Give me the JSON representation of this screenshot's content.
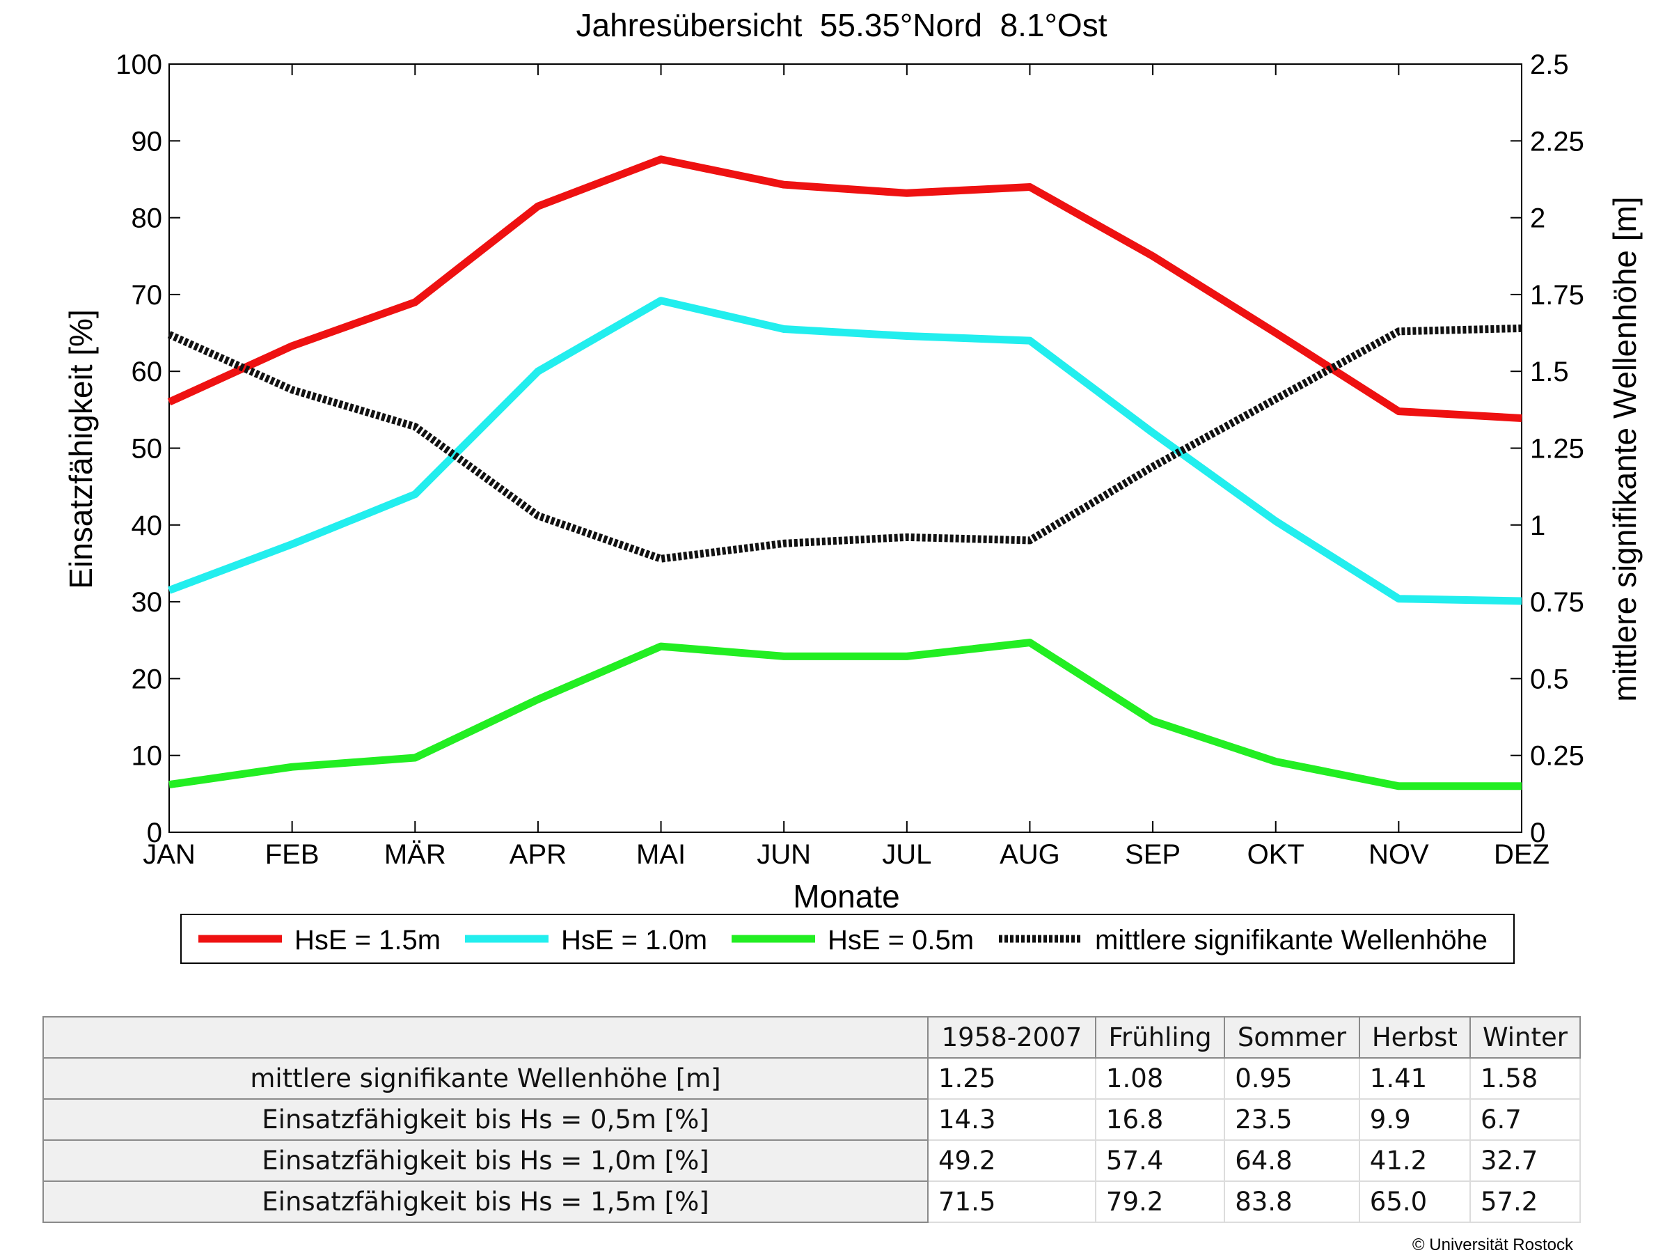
{
  "chart_data": {
    "type": "line",
    "title": "Jahresübersicht  55.35°Nord  8.1°Ost",
    "xlabel": "Monate",
    "ylabel": "Einsatzfähigkeit [%]",
    "y2label": "mittlere signifikante Wellenhöhe [m]",
    "categories": [
      "JAN",
      "FEB",
      "MÄR",
      "APR",
      "MAI",
      "JUN",
      "JUL",
      "AUG",
      "SEP",
      "OKT",
      "NOV",
      "DEZ"
    ],
    "ylim": [
      0,
      100
    ],
    "yticks": [
      "0",
      "10",
      "20",
      "30",
      "40",
      "50",
      "60",
      "70",
      "80",
      "90",
      "100"
    ],
    "y2lim": [
      0,
      2.5
    ],
    "y2ticks": [
      "0",
      "0.25",
      "0.5",
      "0.75",
      "1",
      "1.25",
      "1.5",
      "1.75",
      "2",
      "2.25",
      "2.5"
    ],
    "grid": false,
    "legend_position": "bottom",
    "series": [
      {
        "name": "HsE = 1.5m",
        "axis": "left",
        "color": "#ee1111",
        "style": "solid",
        "values": [
          56,
          63.3,
          69,
          81.5,
          87.6,
          84.3,
          83.2,
          84,
          75,
          65,
          54.8,
          53.9
        ]
      },
      {
        "name": "HsE = 1.0m",
        "axis": "left",
        "color": "#22eeee",
        "style": "solid",
        "values": [
          31.5,
          37.5,
          44,
          60,
          69.2,
          65.5,
          64.6,
          64,
          52,
          40.5,
          30.4,
          30.1
        ]
      },
      {
        "name": "HsE = 0.5m",
        "axis": "left",
        "color": "#22ee22",
        "style": "solid",
        "values": [
          6.2,
          8.5,
          9.7,
          17.3,
          24.2,
          22.9,
          22.9,
          24.7,
          14.5,
          9.2,
          6,
          6
        ]
      },
      {
        "name": "mittlere signifikante Wellenhöhe",
        "axis": "right",
        "color": "#111111",
        "style": "dotted",
        "values": [
          1.62,
          1.44,
          1.32,
          1.03,
          0.89,
          0.94,
          0.96,
          0.95,
          1.19,
          1.41,
          1.63,
          1.64
        ]
      }
    ]
  },
  "table": {
    "columns": [
      "1958-2007",
      "Frühling",
      "Sommer",
      "Herbst",
      "Winter"
    ],
    "rows": [
      {
        "label": "mittlere signifikante Wellenhöhe [m]",
        "values": [
          "1.25",
          "1.08",
          "0.95",
          "1.41",
          "1.58"
        ]
      },
      {
        "label": "Einsatzfähigkeit bis Hs = 0,5m [%]",
        "values": [
          "14.3",
          "16.8",
          "23.5",
          "9.9",
          "6.7"
        ]
      },
      {
        "label": "Einsatzfähigkeit bis Hs = 1,0m [%]",
        "values": [
          "49.2",
          "57.4",
          "64.8",
          "41.2",
          "32.7"
        ]
      },
      {
        "label": "Einsatzfähigkeit bis Hs = 1,5m [%]",
        "values": [
          "71.5",
          "79.2",
          "83.8",
          "65.0",
          "57.2"
        ]
      }
    ]
  },
  "copyright": "© Universität Rostock"
}
